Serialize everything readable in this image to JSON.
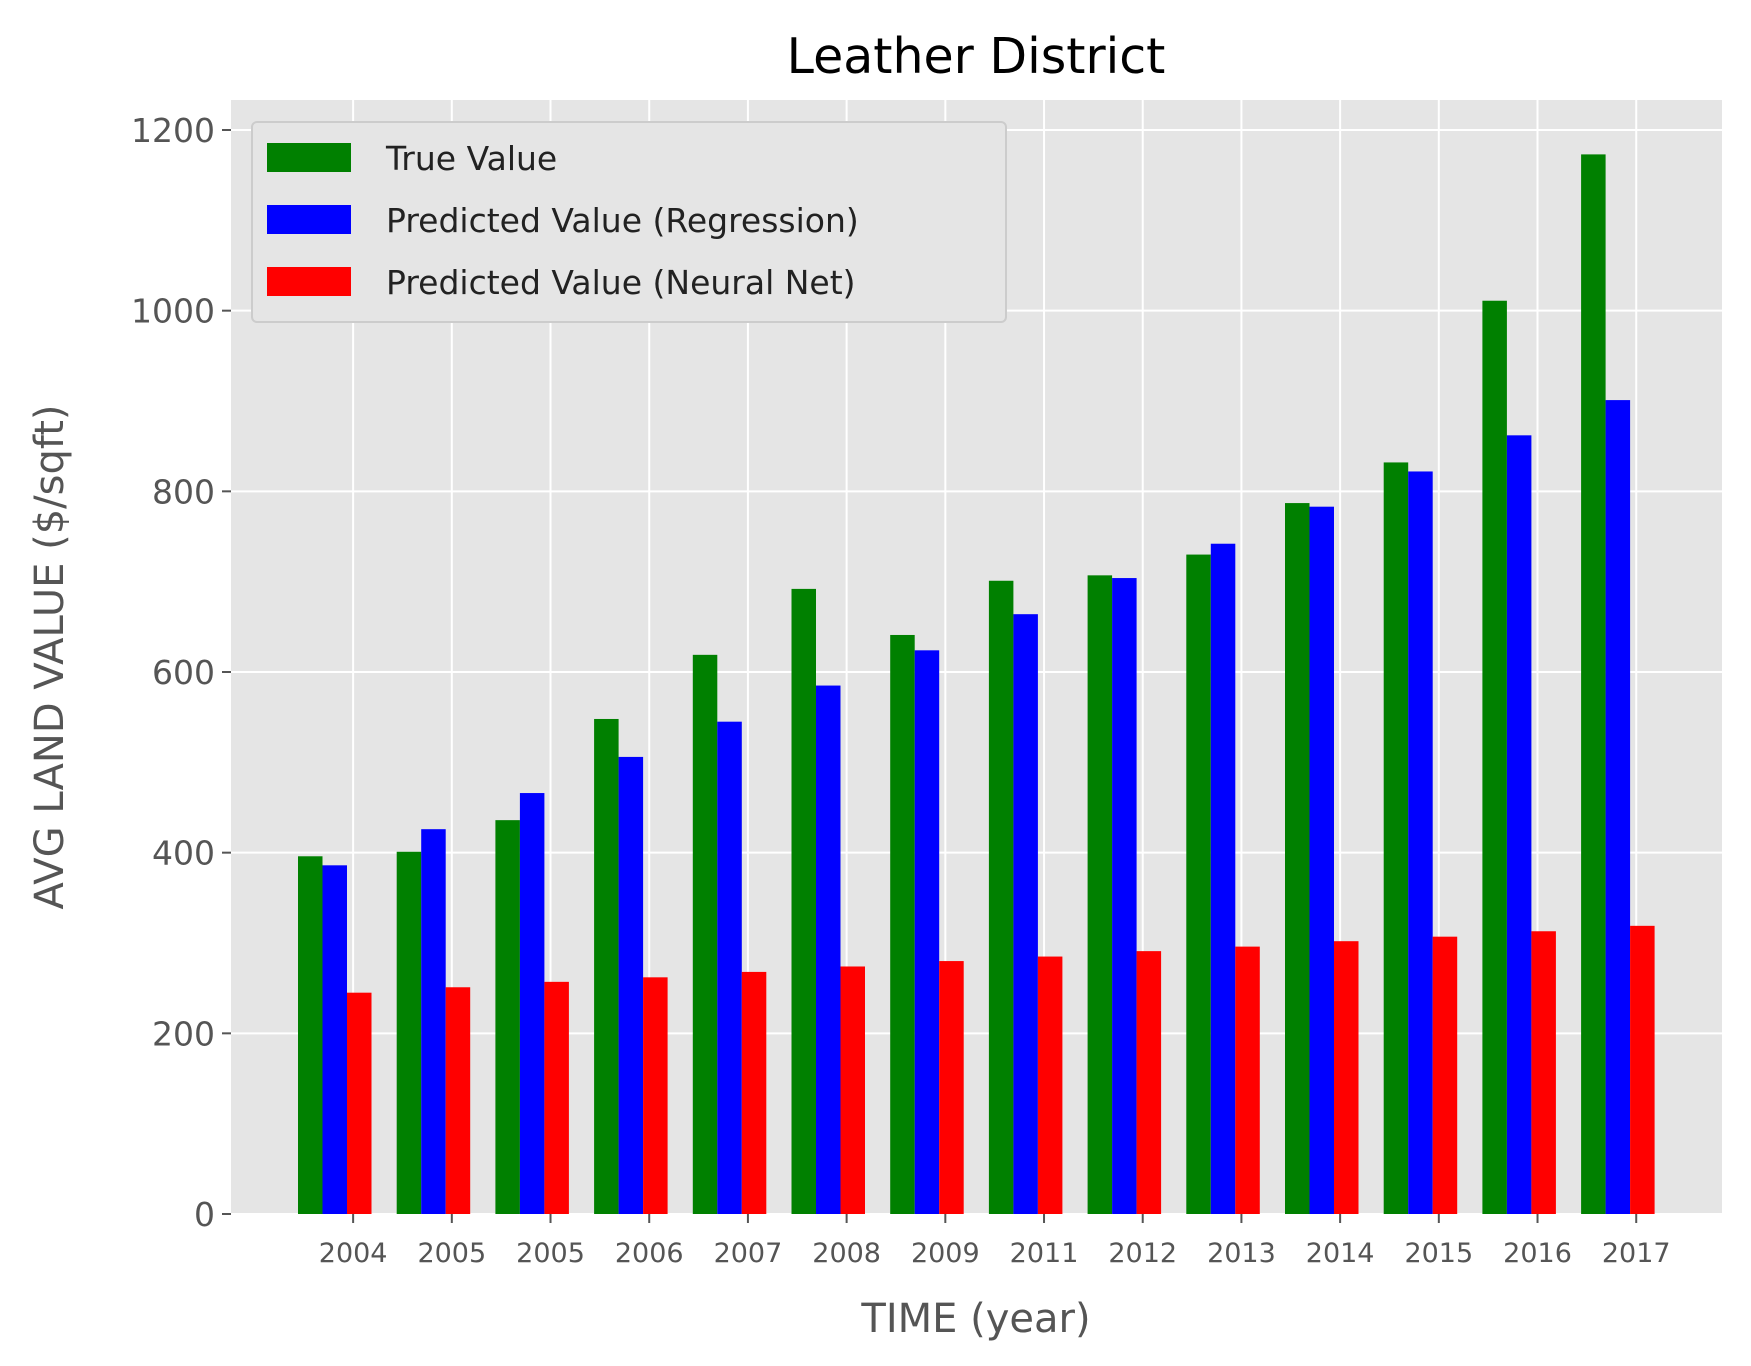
{
  "chart_data": {
    "type": "bar",
    "title": "Leather District",
    "xlabel": "TIME (year)",
    "ylabel": "AVG LAND VALUE ($/sqft)",
    "categories": [
      "2004",
      "2005",
      "2005",
      "2006",
      "2007",
      "2008",
      "2009",
      "2011",
      "2012",
      "2013",
      "2014",
      "2015",
      "2016",
      "2017"
    ],
    "series": [
      {
        "name": "True Value",
        "color": "#008000",
        "values": [
          396,
          401,
          436,
          548,
          619,
          692,
          641,
          701,
          707,
          730,
          787,
          832,
          1011,
          1173
        ]
      },
      {
        "name": "Predicted Value (Regression)",
        "color": "#0000ff",
        "values": [
          386,
          426,
          466,
          506,
          545,
          585,
          624,
          664,
          704,
          742,
          783,
          822,
          862,
          901
        ]
      },
      {
        "name": "Predicted Value (Neural Net)",
        "color": "#ff0000",
        "values": [
          245,
          251,
          257,
          262,
          268,
          274,
          280,
          285,
          291,
          296,
          302,
          307,
          313,
          319
        ]
      }
    ],
    "ylim": [
      0,
      1200
    ],
    "yticks": [
      0,
      200,
      400,
      600,
      800,
      1000,
      1200
    ],
    "grid": true,
    "legend_position": "top-left",
    "plot_background": "#e5e5e5"
  }
}
